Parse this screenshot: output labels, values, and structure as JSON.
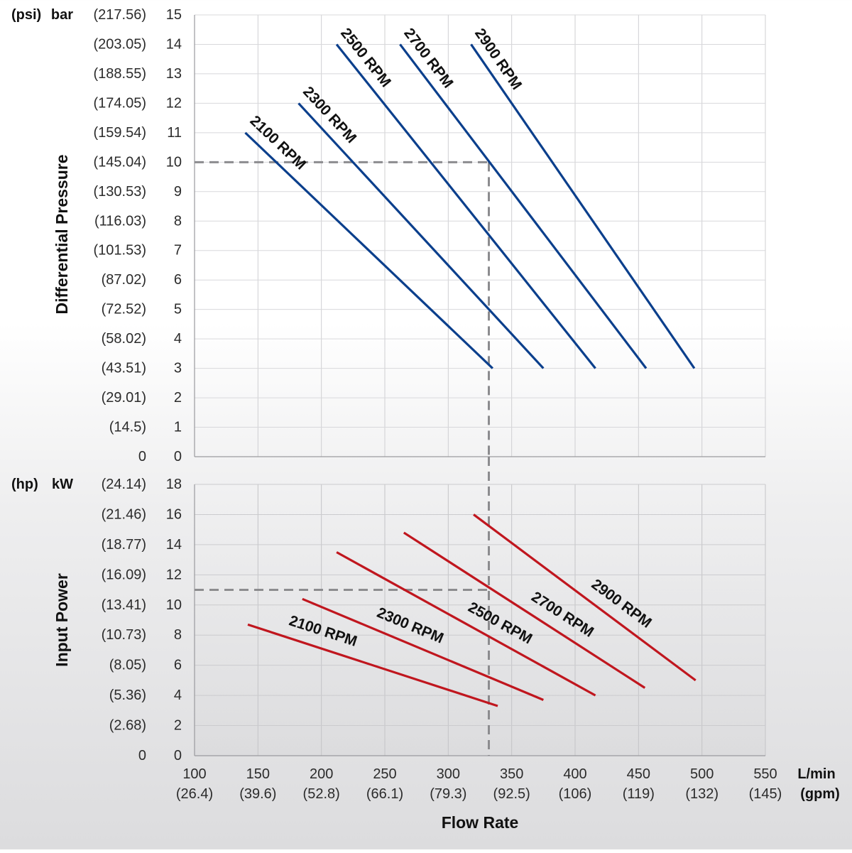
{
  "chart_data": [
    {
      "type": "line",
      "ylabel": "Differential Pressure",
      "y_unit_primary": "bar",
      "y_unit_secondary": "(psi)",
      "ylim": [
        0,
        15
      ],
      "y_ticks": [
        0,
        1,
        2,
        3,
        4,
        5,
        6,
        7,
        8,
        9,
        10,
        11,
        12,
        13,
        14,
        15
      ],
      "y_tick_labels_secondary": [
        "0",
        "(14.5)",
        "(29.01)",
        "(43.51)",
        "(58.02)",
        "(72.52)",
        "(87.02)",
        "(101.53)",
        "(116.03)",
        "(130.53)",
        "(145.04)",
        "(159.54)",
        "(174.05)",
        "(188.55)",
        "(203.05)",
        "(217.56)"
      ],
      "xlim": [
        100,
        550
      ],
      "grid": true,
      "line_color": "#0b3f8c",
      "series": [
        {
          "name": "2100 RPM",
          "x": [
            140,
            335
          ],
          "y": [
            11,
            3
          ]
        },
        {
          "name": "2300 RPM",
          "x": [
            182,
            375
          ],
          "y": [
            12,
            3
          ]
        },
        {
          "name": "2500 RPM",
          "x": [
            212,
            416
          ],
          "y": [
            14,
            3
          ]
        },
        {
          "name": "2700 RPM",
          "x": [
            262,
            456
          ],
          "y": [
            14,
            3
          ]
        },
        {
          "name": "2900 RPM",
          "x": [
            318,
            494
          ],
          "y": [
            14,
            3
          ]
        }
      ],
      "reference": {
        "x": 332,
        "y": 10
      }
    },
    {
      "type": "line",
      "ylabel": "Input Power",
      "y_unit_primary": "kW",
      "y_unit_secondary": "(hp)",
      "ylim": [
        0,
        18
      ],
      "y_ticks": [
        0,
        2,
        4,
        6,
        8,
        10,
        12,
        14,
        16,
        18
      ],
      "y_tick_labels_secondary": [
        "0",
        "(2.68)",
        "(5.36)",
        "(8.05)",
        "(10.73)",
        "(13.41)",
        "(16.09)",
        "(18.77)",
        "(21.46)",
        "(24.14)"
      ],
      "xlabel": "Flow Rate",
      "x_unit_primary": "L/min",
      "x_unit_secondary": "(gpm)",
      "xlim": [
        100,
        550
      ],
      "x_ticks": [
        100,
        150,
        200,
        250,
        300,
        350,
        400,
        450,
        500,
        550
      ],
      "x_tick_labels_secondary": [
        "(26.4)",
        "(39.6)",
        "(52.8)",
        "(66.1)",
        "(79.3)",
        "(92.5)",
        "(106)",
        "(119)",
        "(132)",
        "(145)"
      ],
      "grid": true,
      "line_color": "#c0161e",
      "series": [
        {
          "name": "2100 RPM",
          "x": [
            142,
            339
          ],
          "y": [
            8.7,
            3.3
          ]
        },
        {
          "name": "2300 RPM",
          "x": [
            185,
            375
          ],
          "y": [
            10.4,
            3.7
          ]
        },
        {
          "name": "2500 RPM",
          "x": [
            212,
            416
          ],
          "y": [
            13.5,
            4.0
          ]
        },
        {
          "name": "2700 RPM",
          "x": [
            265,
            455
          ],
          "y": [
            14.8,
            4.5
          ]
        },
        {
          "name": "2900 RPM",
          "x": [
            320,
            495
          ],
          "y": [
            16.0,
            5.0
          ]
        }
      ],
      "reference": {
        "x": 332,
        "y": 11
      }
    }
  ]
}
